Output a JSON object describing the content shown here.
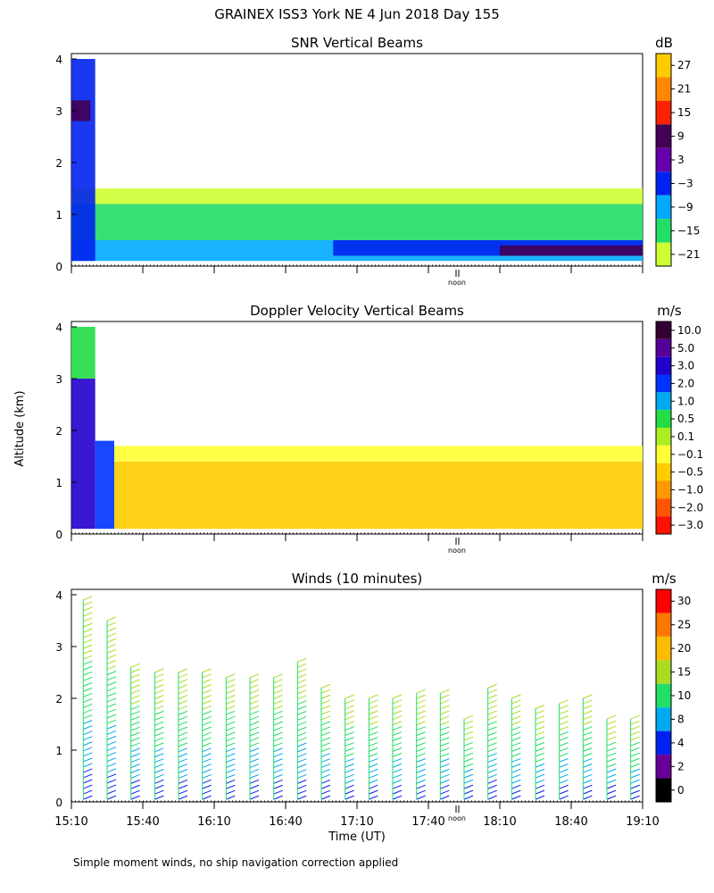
{
  "header": {
    "title": "GRAINEX ISS3 York NE   4 Jun 2018 Day 155"
  },
  "footer": {
    "note": "Simple moment winds, no ship navigation correction applied"
  },
  "shared": {
    "ylabel": "Altitude (km)",
    "xlabel": "Time (UT)",
    "y_ticks": [
      "0",
      "1",
      "2",
      "3",
      "4"
    ],
    "x_ticks": [
      "15:10",
      "15:40",
      "16:10",
      "16:40",
      "17:10",
      "17:40",
      "18:10",
      "18:40",
      "19:10"
    ],
    "noon_label": "noon"
  },
  "chart_data": [
    {
      "id": "snr",
      "type": "heatmap",
      "title": "SNR Vertical Beams",
      "xlabel": "",
      "ylabel": "Altitude (km)",
      "ylim": [
        0,
        4
      ],
      "xlim": [
        "15:10",
        "19:10"
      ],
      "colorbar": {
        "unit": "dB",
        "labels": [
          "27",
          "21",
          "15",
          "9",
          "3",
          "−3",
          "−9",
          "−15",
          "−21"
        ],
        "colors": [
          "#ffcc00",
          "#ff8800",
          "#ff2200",
          "#440055",
          "#6600aa",
          "#0022ee",
          "#00aaff",
          "#22dd66",
          "#ccff33"
        ]
      },
      "regions": [
        {
          "from": "15:10",
          "to": "19:10",
          "alt_min": 0.1,
          "alt_max": 0.5,
          "level": "-9"
        },
        {
          "from": "15:10",
          "to": "19:10",
          "alt_min": 0.5,
          "alt_max": 1.2,
          "level": "-15"
        },
        {
          "from": "15:10",
          "to": "19:10",
          "alt_min": 1.2,
          "alt_max": 1.5,
          "level": "-21"
        },
        {
          "from": "15:10",
          "to": "15:20",
          "alt_min": 0.1,
          "alt_max": 4.0,
          "level": "-3"
        },
        {
          "from": "15:10",
          "to": "15:18",
          "alt_min": 2.8,
          "alt_max": 3.2,
          "level": "9"
        },
        {
          "from": "17:00",
          "to": "19:10",
          "alt_min": 0.2,
          "alt_max": 0.5,
          "level": "-3"
        },
        {
          "from": "18:10",
          "to": "19:10",
          "alt_min": 0.2,
          "alt_max": 0.4,
          "level": "9"
        }
      ]
    },
    {
      "id": "doppler",
      "type": "heatmap",
      "title": "Doppler Velocity Vertical Beams",
      "xlabel": "",
      "ylabel": "Altitude (km)",
      "ylim": [
        0,
        4
      ],
      "xlim": [
        "15:10",
        "19:10"
      ],
      "colorbar": {
        "unit": "m/s",
        "labels": [
          "10.0",
          "5.0",
          "3.0",
          "2.0",
          "1.0",
          "0.5",
          "0.1",
          "−0.1",
          "−0.5",
          "−1.0",
          "−2.0",
          "−3.0"
        ],
        "colors": [
          "#330033",
          "#550099",
          "#2200cc",
          "#0033ff",
          "#00aaee",
          "#22dd44",
          "#aaee22",
          "#ffff33",
          "#ffcc00",
          "#ff9900",
          "#ff5500",
          "#ff1100"
        ]
      },
      "regions": [
        {
          "from": "15:10",
          "to": "15:20",
          "alt_min": 0.1,
          "alt_max": 3.0,
          "level": "3.0"
        },
        {
          "from": "15:10",
          "to": "15:20",
          "alt_min": 3.0,
          "alt_max": 4.0,
          "level": "0.5"
        },
        {
          "from": "15:20",
          "to": "15:28",
          "alt_min": 0.1,
          "alt_max": 1.8,
          "level": "2.0"
        },
        {
          "from": "15:28",
          "to": "19:10",
          "alt_min": 0.1,
          "alt_max": 1.4,
          "level": "-0.5"
        },
        {
          "from": "15:28",
          "to": "19:10",
          "alt_min": 1.4,
          "alt_max": 1.7,
          "level": "-0.1"
        }
      ]
    },
    {
      "id": "winds",
      "type": "wind_barbs",
      "title": "Winds (10 minutes)",
      "xlabel": "Time (UT)",
      "ylabel": "Altitude (km)",
      "ylim": [
        0,
        4
      ],
      "xlim": [
        "15:10",
        "19:10"
      ],
      "colorbar": {
        "unit": "m/s",
        "labels": [
          "30",
          "25",
          "20",
          "15",
          "10",
          "8",
          "4",
          "2",
          "0"
        ],
        "colors": [
          "#ff0000",
          "#ff7700",
          "#ffbb00",
          "#aadd22",
          "#22dd66",
          "#00aaee",
          "#0022ee",
          "#660099",
          "#000000"
        ]
      },
      "profiles": [
        {
          "time": "15:15",
          "top_km": 3.9
        },
        {
          "time": "15:25",
          "top_km": 3.5
        },
        {
          "time": "15:35",
          "top_km": 2.6
        },
        {
          "time": "15:45",
          "top_km": 2.5
        },
        {
          "time": "15:55",
          "top_km": 2.5
        },
        {
          "time": "16:05",
          "top_km": 2.5
        },
        {
          "time": "16:15",
          "top_km": 2.4
        },
        {
          "time": "16:25",
          "top_km": 2.4
        },
        {
          "time": "16:35",
          "top_km": 2.4
        },
        {
          "time": "16:45",
          "top_km": 2.7
        },
        {
          "time": "16:55",
          "top_km": 2.2
        },
        {
          "time": "17:05",
          "top_km": 2.0
        },
        {
          "time": "17:15",
          "top_km": 2.0
        },
        {
          "time": "17:25",
          "top_km": 2.0
        },
        {
          "time": "17:35",
          "top_km": 2.1
        },
        {
          "time": "17:45",
          "top_km": 2.1
        },
        {
          "time": "17:55",
          "top_km": 1.6
        },
        {
          "time": "18:05",
          "top_km": 2.2
        },
        {
          "time": "18:15",
          "top_km": 2.0
        },
        {
          "time": "18:25",
          "top_km": 1.8
        },
        {
          "time": "18:35",
          "top_km": 1.9
        },
        {
          "time": "18:45",
          "top_km": 2.0
        },
        {
          "time": "18:55",
          "top_km": 1.6
        },
        {
          "time": "19:05",
          "top_km": 1.6
        }
      ]
    }
  ]
}
